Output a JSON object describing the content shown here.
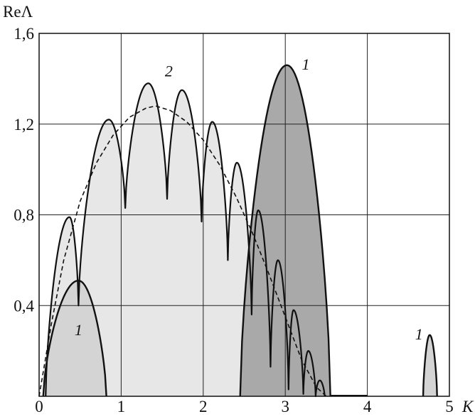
{
  "chart_data": {
    "type": "area",
    "xlabel": "K",
    "ylabel": "ReΛ",
    "xlim": [
      0,
      5
    ],
    "ylim": [
      0,
      1.6
    ],
    "grid": true,
    "x_ticks": [
      {
        "value": 0,
        "label": "0"
      },
      {
        "value": 1,
        "label": "1"
      },
      {
        "value": 2,
        "label": "2"
      },
      {
        "value": 3,
        "label": "3"
      },
      {
        "value": 4,
        "label": "4"
      },
      {
        "value": 5,
        "label": "5"
      }
    ],
    "y_ticks": [
      {
        "value": 0.4,
        "label": "0,4"
      },
      {
        "value": 0.8,
        "label": "0,8"
      },
      {
        "value": 1.2,
        "label": "1,2"
      },
      {
        "value": 1.6,
        "label": "1,6"
      }
    ],
    "colors": {
      "light_fill": "#e7e7e7",
      "medium_fill": "#d4d4d4",
      "dark_fill": "#a9a9a9",
      "stroke": "#111111"
    },
    "series": [
      {
        "name": "2",
        "style": "light-filled lobes",
        "lobes": [
          {
            "x_start": 0.08,
            "x_end": 0.48,
            "peak_x": 0.37,
            "peak_y": 0.79
          },
          {
            "x_start": 0.48,
            "x_end": 1.05,
            "peak_x": 0.85,
            "peak_y": 1.22
          },
          {
            "x_start": 1.05,
            "x_end": 1.56,
            "peak_x": 1.33,
            "peak_y": 1.38
          },
          {
            "x_start": 1.56,
            "x_end": 1.98,
            "peak_x": 1.74,
            "peak_y": 1.35
          },
          {
            "x_start": 1.98,
            "x_end": 2.3,
            "peak_x": 2.11,
            "peak_y": 1.21
          },
          {
            "x_start": 2.3,
            "x_end": 2.59,
            "peak_x": 2.41,
            "peak_y": 1.03
          },
          {
            "x_start": 2.59,
            "x_end": 2.82,
            "peak_x": 2.67,
            "peak_y": 0.82
          },
          {
            "x_start": 2.82,
            "x_end": 3.04,
            "peak_x": 2.91,
            "peak_y": 0.6
          },
          {
            "x_start": 3.04,
            "x_end": 3.22,
            "peak_x": 3.1,
            "peak_y": 0.38
          },
          {
            "x_start": 3.22,
            "x_end": 3.37,
            "peak_x": 3.28,
            "peak_y": 0.2
          },
          {
            "x_start": 3.37,
            "x_end": 3.48,
            "peak_x": 3.42,
            "peak_y": 0.07
          }
        ],
        "dips": [
          {
            "x": 0.48,
            "y": 0.4
          },
          {
            "x": 1.05,
            "y": 0.83
          },
          {
            "x": 1.56,
            "y": 0.87
          },
          {
            "x": 1.98,
            "y": 0.77
          },
          {
            "x": 2.3,
            "y": 0.6
          },
          {
            "x": 2.59,
            "y": 0.36
          },
          {
            "x": 2.82,
            "y": 0.13
          },
          {
            "x": 3.04,
            "y": 0.03
          },
          {
            "x": 3.22,
            "y": 0.01
          },
          {
            "x": 3.37,
            "y": 0.0
          }
        ]
      },
      {
        "name": "1",
        "style": "filled lobes",
        "lobes": [
          {
            "x_start": 0.05,
            "x_end": 0.82,
            "peak_x": 0.48,
            "peak_y": 0.51,
            "fill": "medium"
          },
          {
            "x_start": 2.45,
            "x_end": 3.55,
            "peak_x": 3.02,
            "peak_y": 1.46,
            "fill": "dark"
          },
          {
            "x_start": 4.68,
            "x_end": 4.85,
            "peak_x": 4.76,
            "peak_y": 0.27,
            "fill": "medium"
          }
        ]
      },
      {
        "name": "",
        "style": "dashed envelope",
        "points": [
          [
            0.0,
            0.0
          ],
          [
            0.15,
            0.32
          ],
          [
            0.3,
            0.6
          ],
          [
            0.5,
            0.86
          ],
          [
            0.7,
            1.03
          ],
          [
            0.9,
            1.15
          ],
          [
            1.1,
            1.23
          ],
          [
            1.3,
            1.27
          ],
          [
            1.42,
            1.28
          ],
          [
            1.6,
            1.26
          ],
          [
            1.8,
            1.21
          ],
          [
            2.0,
            1.13
          ],
          [
            2.2,
            1.02
          ],
          [
            2.4,
            0.88
          ],
          [
            2.6,
            0.72
          ],
          [
            2.8,
            0.54
          ],
          [
            3.0,
            0.35
          ],
          [
            3.2,
            0.16
          ],
          [
            3.38,
            0.04
          ],
          [
            3.5,
            0.0
          ]
        ]
      }
    ],
    "baseline_segment": {
      "x_start": 3.55,
      "x_end": 4.0,
      "y": 0.0
    },
    "annotations": [
      {
        "text": "1",
        "x": 0.48,
        "y": 0.27
      },
      {
        "text": "2",
        "x": 1.58,
        "y": 1.41
      },
      {
        "text": "1",
        "x": 3.25,
        "y": 1.44
      },
      {
        "text": "1",
        "x": 4.63,
        "y": 0.25
      }
    ]
  }
}
